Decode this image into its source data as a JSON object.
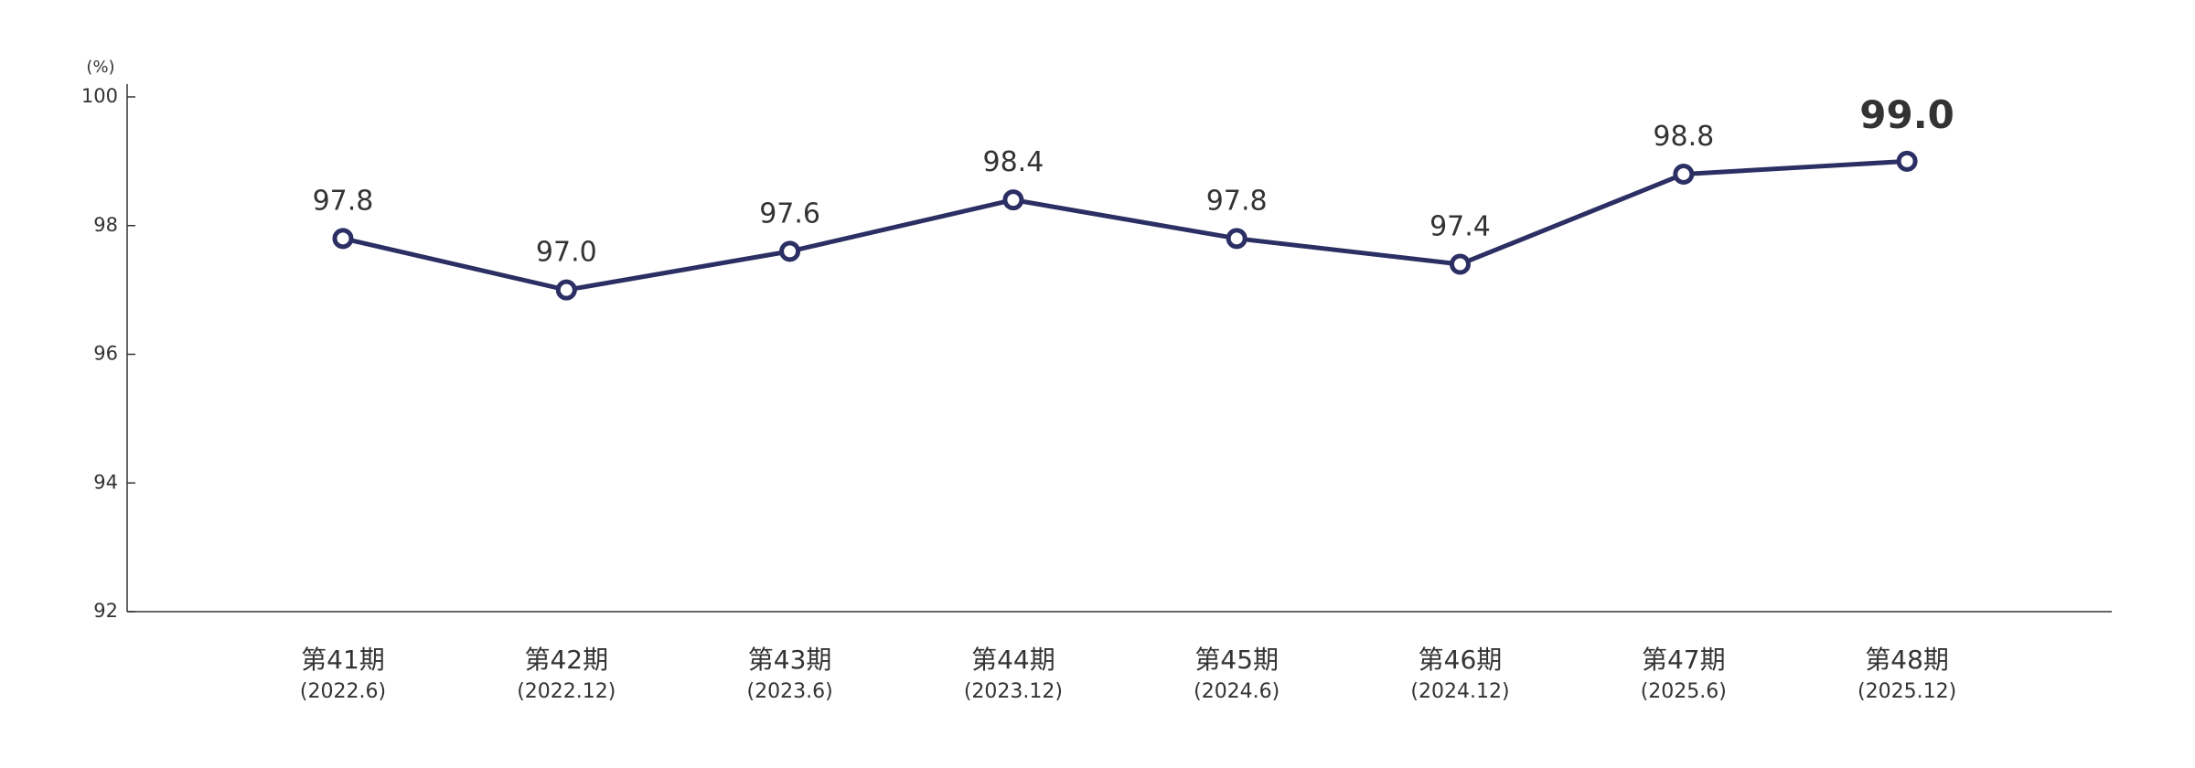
{
  "chart_data": {
    "type": "line",
    "ylabel": "(%)",
    "categories": [
      "第41期",
      "第42期",
      "第43期",
      "第44期",
      "第45期",
      "第46期",
      "第47期",
      "第48期"
    ],
    "category_dates": [
      "(2022.6)",
      "(2022.12)",
      "(2023.6)",
      "(2023.12)",
      "(2024.6)",
      "(2024.12)",
      "(2025.6)",
      "(2025.12)"
    ],
    "series": [
      {
        "color": "#2b2f63",
        "values": [
          97.8,
          97.0,
          97.6,
          98.4,
          97.8,
          97.4,
          98.8,
          99.0
        ],
        "value_labels": [
          "97.8",
          "97.0",
          "97.6",
          "98.4",
          "97.8",
          "97.4",
          "98.8",
          "99.0"
        ]
      }
    ],
    "ylim": [
      92,
      100
    ],
    "yticks": [
      92,
      94,
      96,
      98,
      100
    ],
    "grid": false
  }
}
